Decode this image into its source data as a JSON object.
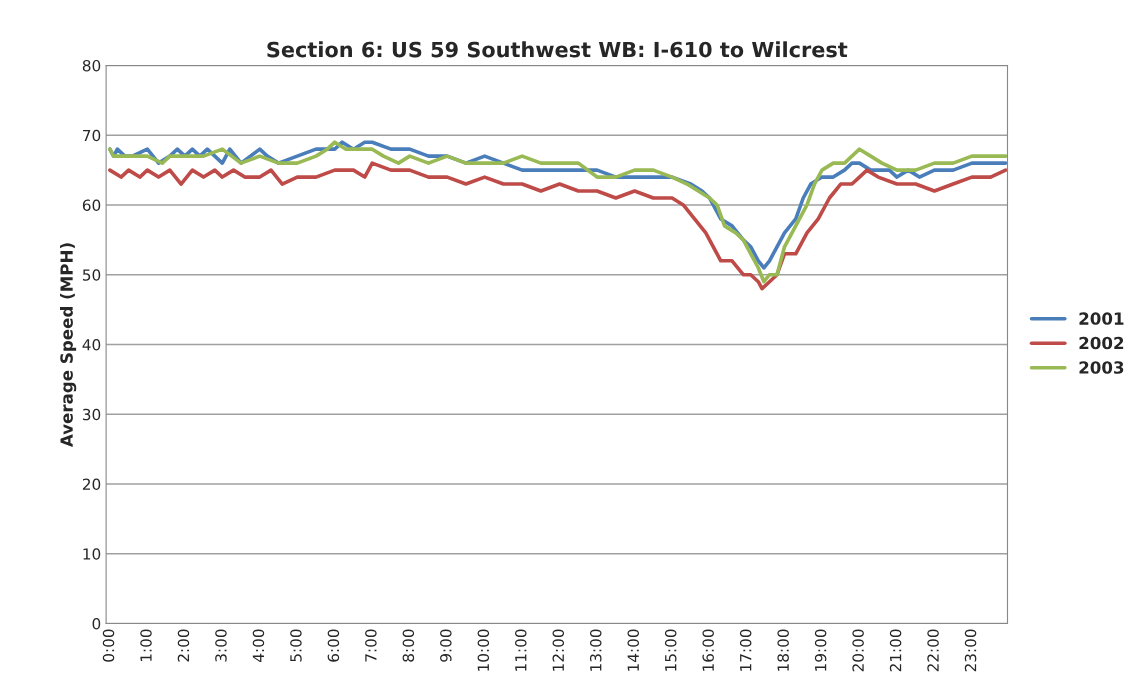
{
  "chart_data": {
    "type": "line",
    "title": "Section 6: US 59 Southwest WB: I-610 to Wilcrest",
    "ylabel": "Average Speed (MPH)",
    "xlim": [
      -0.1,
      23.95
    ],
    "ylim": [
      0,
      80
    ],
    "yticks": [
      0,
      10,
      20,
      30,
      40,
      50,
      60,
      70,
      80
    ],
    "xticks": [
      {
        "value": 0,
        "label": "0:00"
      },
      {
        "value": 1,
        "label": "1:00"
      },
      {
        "value": 2,
        "label": "2:00"
      },
      {
        "value": 3,
        "label": "3:00"
      },
      {
        "value": 4,
        "label": "4:00"
      },
      {
        "value": 5,
        "label": "5:00"
      },
      {
        "value": 6,
        "label": "6:00"
      },
      {
        "value": 7,
        "label": "7:00"
      },
      {
        "value": 8,
        "label": "8:00"
      },
      {
        "value": 9,
        "label": "9:00"
      },
      {
        "value": 10,
        "label": "10:00"
      },
      {
        "value": 11,
        "label": "11:00"
      },
      {
        "value": 12,
        "label": "12:00"
      },
      {
        "value": 13,
        "label": "13:00"
      },
      {
        "value": 14,
        "label": "14:00"
      },
      {
        "value": 15,
        "label": "15:00"
      },
      {
        "value": 16,
        "label": "16:00"
      },
      {
        "value": 17,
        "label": "17:00"
      },
      {
        "value": 18,
        "label": "18:00"
      },
      {
        "value": 19,
        "label": "19:00"
      },
      {
        "value": 20,
        "label": "20:00"
      },
      {
        "value": 21,
        "label": "21:00"
      },
      {
        "value": 22,
        "label": "22:00"
      },
      {
        "value": 23,
        "label": "23:00"
      }
    ],
    "grid": "y",
    "legend": "right",
    "marker": "none",
    "line_style": "solid",
    "series": [
      {
        "name": "2001",
        "color": "#4a7ebb",
        "x": [
          0,
          0.1,
          0.2,
          0.4,
          0.6,
          1.0,
          1.3,
          1.6,
          1.8,
          2.0,
          2.2,
          2.4,
          2.6,
          3.0,
          3.2,
          3.5,
          4.0,
          4.2,
          4.5,
          5.0,
          5.5,
          6.0,
          6.2,
          6.5,
          6.8,
          7.0,
          7.5,
          8.0,
          8.5,
          9.0,
          9.5,
          10.0,
          10.5,
          11.0,
          12.0,
          12.5,
          13.0,
          13.5,
          14.0,
          14.5,
          15.0,
          15.5,
          15.8,
          16.0,
          16.3,
          16.6,
          16.9,
          17.1,
          17.3,
          17.45,
          17.6,
          17.8,
          18.0,
          18.3,
          18.5,
          18.7,
          19.0,
          19.3,
          19.6,
          19.8,
          20.0,
          20.3,
          20.5,
          20.8,
          21.0,
          21.3,
          21.6,
          22.0,
          22.5,
          23.0,
          23.5,
          23.9
        ],
        "values": [
          68,
          67,
          68,
          67,
          67,
          68,
          66,
          67,
          68,
          67,
          68,
          67,
          68,
          66,
          68,
          66,
          68,
          67,
          66,
          67,
          68,
          68,
          69,
          68,
          69,
          69,
          68,
          68,
          67,
          67,
          66,
          67,
          66,
          65,
          65,
          65,
          65,
          64,
          64,
          64,
          64,
          63,
          62,
          61,
          58,
          57,
          55,
          54,
          52,
          51,
          52,
          54,
          56,
          58,
          61,
          63,
          64,
          64,
          65,
          66,
          66,
          65,
          65,
          65,
          64,
          65,
          64,
          65,
          65,
          66,
          66,
          66
        ]
      },
      {
        "name": "2002",
        "color": "#be4b48",
        "x": [
          0,
          0.3,
          0.5,
          0.8,
          1.0,
          1.3,
          1.6,
          1.9,
          2.2,
          2.5,
          2.8,
          3.0,
          3.3,
          3.6,
          4.0,
          4.3,
          4.6,
          5.0,
          5.5,
          6.0,
          6.5,
          6.8,
          7.0,
          7.5,
          8.0,
          8.5,
          9.0,
          9.5,
          10.0,
          10.5,
          11.0,
          11.5,
          12.0,
          12.5,
          13.0,
          13.5,
          14.0,
          14.5,
          15.0,
          15.3,
          15.6,
          15.9,
          16.1,
          16.3,
          16.6,
          16.9,
          17.1,
          17.3,
          17.4,
          17.6,
          17.8,
          18.0,
          18.3,
          18.6,
          18.9,
          19.2,
          19.5,
          19.8,
          20.0,
          20.2,
          20.5,
          21.0,
          21.5,
          22.0,
          22.5,
          23.0,
          23.5,
          23.9
        ],
        "values": [
          65,
          64,
          65,
          64,
          65,
          64,
          65,
          63,
          65,
          64,
          65,
          64,
          65,
          64,
          64,
          65,
          63,
          64,
          64,
          65,
          65,
          64,
          66,
          65,
          65,
          64,
          64,
          63,
          64,
          63,
          63,
          62,
          63,
          62,
          62,
          61,
          62,
          61,
          61,
          60,
          58,
          56,
          54,
          52,
          52,
          50,
          50,
          49,
          48,
          49,
          50,
          53,
          53,
          56,
          58,
          61,
          63,
          63,
          64,
          65,
          64,
          63,
          63,
          62,
          63,
          64,
          64,
          65
        ]
      },
      {
        "name": "2003",
        "color": "#98b954",
        "x": [
          0,
          0.1,
          0.5,
          1.0,
          1.4,
          1.6,
          2.0,
          2.5,
          3.0,
          3.5,
          4.0,
          4.5,
          5.0,
          5.5,
          5.8,
          6.0,
          6.3,
          6.6,
          7.0,
          7.3,
          7.7,
          8.0,
          8.5,
          9.0,
          9.5,
          10.0,
          10.5,
          11.0,
          11.5,
          12.0,
          12.5,
          13.0,
          13.5,
          14.0,
          14.5,
          15.0,
          15.4,
          15.7,
          16.0,
          16.2,
          16.4,
          16.7,
          16.9,
          17.1,
          17.3,
          17.45,
          17.6,
          17.8,
          18.0,
          18.3,
          18.6,
          18.8,
          19.0,
          19.3,
          19.6,
          19.8,
          20.0,
          20.3,
          20.6,
          21.0,
          21.5,
          22.0,
          22.5,
          23.0,
          23.5,
          23.9
        ],
        "values": [
          68,
          67,
          67,
          67,
          66,
          67,
          67,
          67,
          68,
          66,
          67,
          66,
          66,
          67,
          68,
          69,
          68,
          68,
          68,
          67,
          66,
          67,
          66,
          67,
          66,
          66,
          66,
          67,
          66,
          66,
          66,
          64,
          64,
          65,
          65,
          64,
          63,
          62,
          61,
          60,
          57,
          56,
          55,
          53,
          51,
          49,
          50,
          50,
          54,
          57,
          60,
          63,
          65,
          66,
          66,
          67,
          68,
          67,
          66,
          65,
          65,
          66,
          66,
          67,
          67,
          67
        ]
      }
    ]
  }
}
